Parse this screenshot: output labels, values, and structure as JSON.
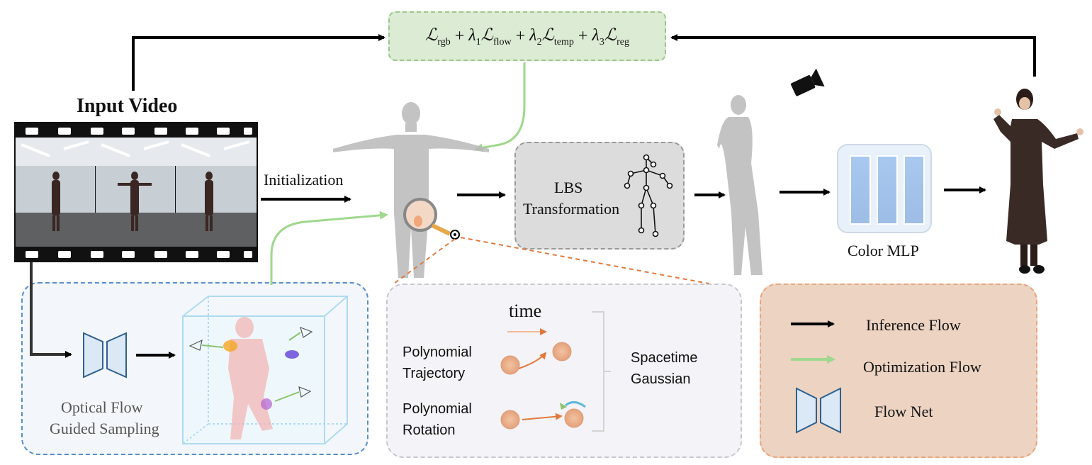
{
  "input_video": {
    "title": "Input Video"
  },
  "initialization": "Initialization",
  "loss": {
    "t1": "rgb",
    "t2": "flow",
    "t3": "temp",
    "t4": "reg",
    "l1": "1",
    "l2": "2",
    "l3": "3"
  },
  "lbs": {
    "line1": "LBS",
    "line2": "Transformation"
  },
  "color_mlp": "Color MLP",
  "optical_flow": {
    "line1": "Optical Flow",
    "line2": "Guided Sampling"
  },
  "spacetime": {
    "time": "time",
    "poly_traj_1": "Polynomial",
    "poly_traj_2": "Trajectory",
    "poly_rot_1": "Polynomial",
    "poly_rot_2": "Rotation",
    "gauss_1": "Spacetime",
    "gauss_2": "Gaussian"
  },
  "legend": {
    "inference": "Inference Flow",
    "optimization": "Optimization Flow",
    "flownet": "Flow Net"
  },
  "colors": {
    "green": "#9fd88e",
    "blue_dash": "#5b8fc7",
    "orange": "#e07a3c",
    "flownet_fill": "#dbe8f5",
    "flownet_stroke": "#2e5f8f"
  }
}
